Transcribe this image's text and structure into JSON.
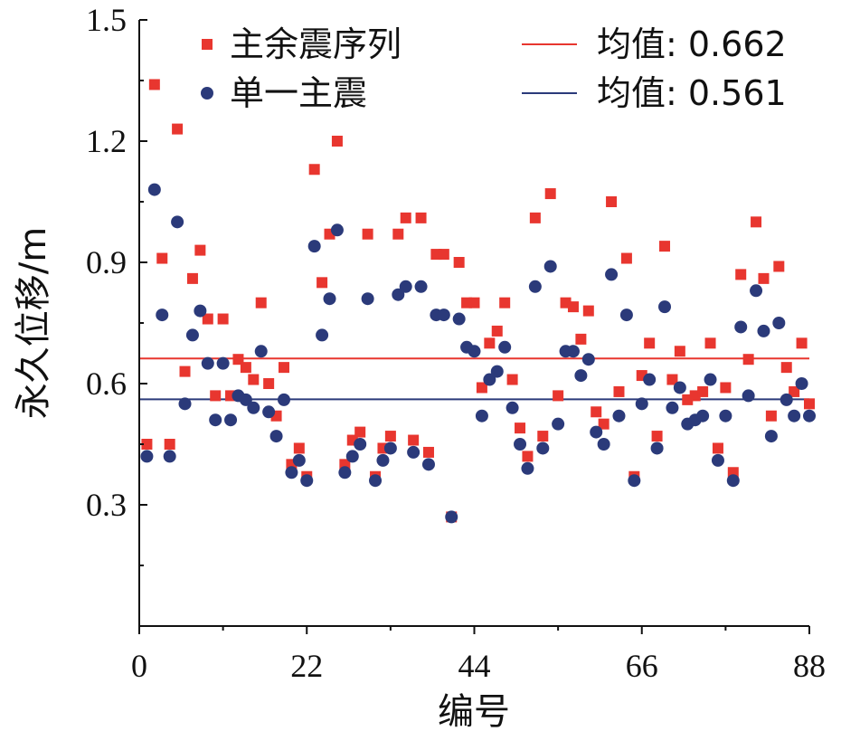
{
  "chart_data": {
    "type": "scatter",
    "xlabel": "编号",
    "ylabel": "永久位移/m",
    "xlim": [
      0,
      88
    ],
    "ylim": [
      0,
      1.5
    ],
    "x_ticks": [
      "0",
      "22",
      "44",
      "66",
      "88"
    ],
    "y_ticks": [
      "0.3",
      "0.6",
      "0.9",
      "1.2",
      "1.5"
    ],
    "grid": false,
    "legend_position": "top",
    "series": [
      {
        "name": "主余震序列",
        "marker": "square",
        "color": "#e8362f",
        "x": [
          1,
          2,
          3,
          4,
          5,
          6,
          7,
          8,
          9,
          10,
          11,
          12,
          13,
          14,
          15,
          16,
          17,
          18,
          19,
          20,
          21,
          22,
          23,
          24,
          25,
          26,
          27,
          28,
          29,
          30,
          31,
          32,
          33,
          34,
          35,
          36,
          37,
          38,
          39,
          40,
          41,
          42,
          43,
          44,
          45,
          46,
          47,
          48,
          49,
          50,
          51,
          52,
          53,
          54,
          55,
          56,
          57,
          58,
          59,
          60,
          61,
          62,
          63,
          64,
          65,
          66,
          67,
          68,
          69,
          70,
          71,
          72,
          73,
          74,
          75,
          76,
          77,
          78,
          79,
          80,
          81,
          82,
          83,
          84,
          85,
          86,
          87,
          88
        ],
        "values": [
          0.45,
          1.34,
          0.91,
          0.45,
          1.23,
          0.63,
          0.86,
          0.93,
          0.76,
          0.57,
          0.76,
          0.57,
          0.66,
          0.64,
          0.61,
          0.8,
          0.6,
          0.52,
          0.64,
          0.4,
          0.44,
          0.37,
          1.13,
          0.85,
          0.97,
          1.2,
          0.4,
          0.46,
          0.48,
          0.97,
          0.37,
          0.44,
          0.47,
          0.97,
          1.01,
          0.46,
          1.01,
          0.43,
          0.92,
          0.92,
          0.27,
          0.9,
          0.8,
          0.8,
          0.59,
          0.7,
          0.73,
          0.8,
          0.61,
          0.49,
          0.42,
          1.01,
          0.47,
          1.07,
          0.57,
          0.8,
          0.79,
          0.71,
          0.78,
          0.53,
          0.5,
          1.05,
          0.58,
          0.91,
          0.37,
          0.62,
          0.7,
          0.47,
          0.94,
          0.61,
          0.68,
          0.56,
          0.57,
          0.58,
          0.7,
          0.44,
          0.59,
          0.38,
          0.87,
          0.66,
          1.0,
          0.86,
          0.52,
          0.89,
          0.64,
          0.58,
          0.7,
          0.55
        ]
      },
      {
        "name": "单一主震",
        "marker": "circle",
        "color": "#2b3a7a",
        "x": [
          1,
          2,
          3,
          4,
          5,
          6,
          7,
          8,
          9,
          10,
          11,
          12,
          13,
          14,
          15,
          16,
          17,
          18,
          19,
          20,
          21,
          22,
          23,
          24,
          25,
          26,
          27,
          28,
          29,
          30,
          31,
          32,
          33,
          34,
          35,
          36,
          37,
          38,
          39,
          40,
          41,
          42,
          43,
          44,
          45,
          46,
          47,
          48,
          49,
          50,
          51,
          52,
          53,
          54,
          55,
          56,
          57,
          58,
          59,
          60,
          61,
          62,
          63,
          64,
          65,
          66,
          67,
          68,
          69,
          70,
          71,
          72,
          73,
          74,
          75,
          76,
          77,
          78,
          79,
          80,
          81,
          82,
          83,
          84,
          85,
          86,
          87,
          88
        ],
        "values": [
          0.42,
          1.08,
          0.77,
          0.42,
          1.0,
          0.55,
          0.72,
          0.78,
          0.65,
          0.51,
          0.65,
          0.51,
          0.57,
          0.56,
          0.54,
          0.68,
          0.53,
          0.47,
          0.56,
          0.38,
          0.41,
          0.36,
          0.94,
          0.72,
          0.81,
          0.98,
          0.38,
          0.42,
          0.45,
          0.81,
          0.36,
          0.41,
          0.44,
          0.82,
          0.84,
          0.43,
          0.84,
          0.4,
          0.77,
          0.77,
          0.27,
          0.76,
          0.69,
          0.68,
          0.52,
          0.61,
          0.63,
          0.69,
          0.54,
          0.45,
          0.39,
          0.84,
          0.44,
          0.89,
          0.5,
          0.68,
          0.68,
          0.62,
          0.66,
          0.48,
          0.45,
          0.87,
          0.52,
          0.77,
          0.36,
          0.55,
          0.61,
          0.44,
          0.79,
          0.54,
          0.59,
          0.5,
          0.51,
          0.52,
          0.61,
          0.41,
          0.52,
          0.36,
          0.74,
          0.57,
          0.83,
          0.73,
          0.47,
          0.75,
          0.56,
          0.52,
          0.6,
          0.52
        ]
      }
    ],
    "mean_lines": [
      {
        "label": "均值: 0.662",
        "value": 0.662,
        "color": "#e8362f"
      },
      {
        "label": "均值: 0.561",
        "value": 0.561,
        "color": "#2b3a7a"
      }
    ]
  }
}
